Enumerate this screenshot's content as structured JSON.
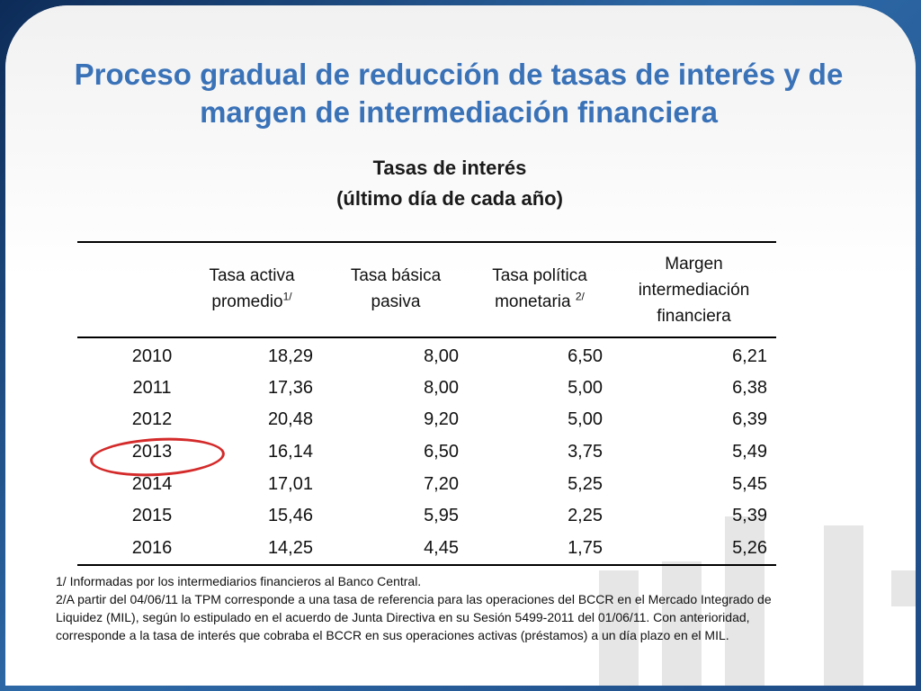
{
  "title_line1": "Proceso gradual de reducción de tasas de interés y de",
  "title_line2": "margen de intermediación financiera",
  "subtitle_line1": "Tasas de interés",
  "subtitle_line2": "(último día de cada año)",
  "columns": {
    "c1_line1": "Tasa activa",
    "c1_line2": "promedio",
    "c1_sup": "1/",
    "c2_line1": "Tasa básica",
    "c2_line2": "pasiva",
    "c3_line1": "Tasa política",
    "c3_line2": "monetaria",
    "c3_sup": "2/",
    "c4_line1": "Margen",
    "c4_line2": "intermediación",
    "c4_line3": "financiera"
  },
  "rows": [
    {
      "year": "2010",
      "activa": "18,29",
      "basica": "8,00",
      "politica": "6,50",
      "margen": "6,21"
    },
    {
      "year": "2011",
      "activa": "17,36",
      "basica": "8,00",
      "politica": "5,00",
      "margen": "6,38"
    },
    {
      "year": "2012",
      "activa": "20,48",
      "basica": "9,20",
      "politica": "5,00",
      "margen": "6,39"
    },
    {
      "year": "2013",
      "activa": "16,14",
      "basica": "6,50",
      "politica": "3,75",
      "margen": "5,49"
    },
    {
      "year": "2014",
      "activa": "17,01",
      "basica": "7,20",
      "politica": "5,25",
      "margen": "5,45"
    },
    {
      "year": "2015",
      "activa": "15,46",
      "basica": "5,95",
      "politica": "2,25",
      "margen": "5,39"
    },
    {
      "year": "2016",
      "activa": "14,25",
      "basica": "4,45",
      "politica": "1,75",
      "margen": "5,26"
    }
  ],
  "highlighted_year": "2013",
  "notes": {
    "n1": "1/ Informadas por los intermediarios financieros al Banco Central.",
    "n2_line1": "2/A partir del 04/06/11 la TPM corresponde a una tasa de referencia para las operaciones del BCCR en el Mercado Integrado de",
    "n2_line2": "Liquidez (MIL), según lo estipulado en el acuerdo de Junta Directiva en su Sesión 5499-2011 del 01/06/11.  Con anterioridad,",
    "n2_line3": "corresponde a la tasa de interés que cobraba el BCCR en sus operaciones activas (préstamos) a un día plazo en el MIL."
  },
  "colors": {
    "title": "#3a72b8",
    "highlight": "#d42a2a",
    "frame": "#1a3d6d"
  }
}
